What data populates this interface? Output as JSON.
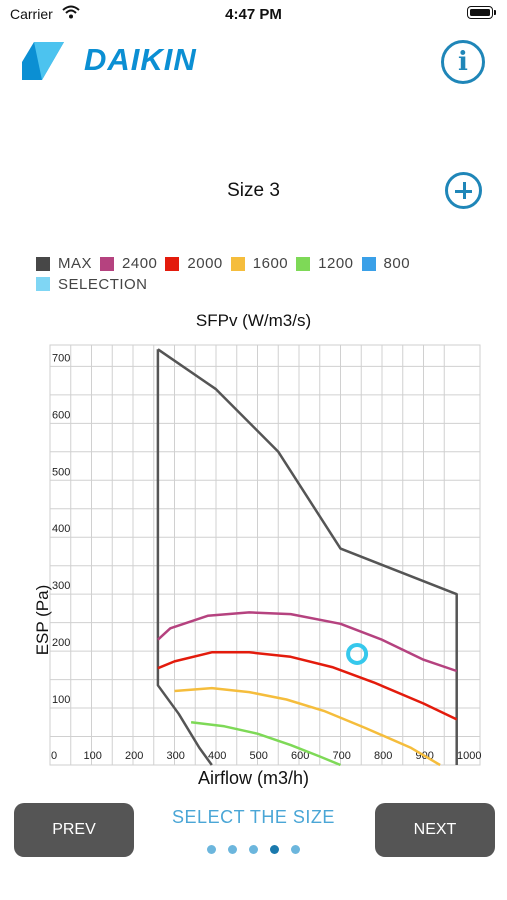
{
  "status": {
    "carrier": "Carrier",
    "time": "4:47 PM"
  },
  "header": {
    "brand": "DAIKIN",
    "info_symbol": "i"
  },
  "size": {
    "title": "Size 3"
  },
  "legend": [
    {
      "label": "MAX",
      "color": "#474747"
    },
    {
      "label": "2400",
      "color": "#b5427f"
    },
    {
      "label": "2000",
      "color": "#e31b0c"
    },
    {
      "label": "1600",
      "color": "#f5bd3c"
    },
    {
      "label": "1200",
      "color": "#7ed957"
    },
    {
      "label": "800",
      "color": "#3aa0e8"
    },
    {
      "label": "SELECTION",
      "color": "#7fd6f4"
    }
  ],
  "chart_data": {
    "type": "line",
    "title": "SFPv (W/m3/s)",
    "xlabel": "Airflow (m3/h)",
    "ylabel": "ESP (Pa)",
    "xlim": [
      0,
      1000
    ],
    "ylim": [
      0,
      720
    ],
    "x_ticks": [
      0,
      100,
      200,
      300,
      400,
      500,
      600,
      700,
      800,
      900,
      1000
    ],
    "y_ticks": [
      100,
      200,
      300,
      400,
      500,
      600,
      700
    ],
    "grid": true,
    "series": [
      {
        "name": "MAX",
        "color": "#555555",
        "points": [
          [
            260,
            730
          ],
          [
            260,
            140
          ],
          [
            310,
            90
          ],
          [
            360,
            30
          ],
          [
            390,
            0
          ]
        ]
      },
      {
        "name": "MAX",
        "color": "#555555",
        "points": [
          [
            260,
            730
          ],
          [
            400,
            660
          ],
          [
            550,
            550
          ],
          [
            700,
            380
          ],
          [
            980,
            300
          ],
          [
            980,
            0
          ]
        ]
      },
      {
        "name": "2400",
        "color": "#b5427f",
        "points": [
          [
            260,
            220
          ],
          [
            290,
            240
          ],
          [
            380,
            262
          ],
          [
            480,
            268
          ],
          [
            580,
            265
          ],
          [
            700,
            248
          ],
          [
            800,
            220
          ],
          [
            900,
            185
          ],
          [
            980,
            165
          ]
        ]
      },
      {
        "name": "2000",
        "color": "#e31b0c",
        "points": [
          [
            260,
            170
          ],
          [
            300,
            182
          ],
          [
            390,
            198
          ],
          [
            480,
            198
          ],
          [
            580,
            190
          ],
          [
            680,
            172
          ],
          [
            780,
            145
          ],
          [
            900,
            108
          ],
          [
            980,
            80
          ]
        ]
      },
      {
        "name": "1600",
        "color": "#f5bd3c",
        "points": [
          [
            300,
            130
          ],
          [
            390,
            135
          ],
          [
            480,
            128
          ],
          [
            570,
            115
          ],
          [
            660,
            95
          ],
          [
            760,
            65
          ],
          [
            870,
            30
          ],
          [
            940,
            0
          ]
        ]
      },
      {
        "name": "1200",
        "color": "#7ed957",
        "points": [
          [
            340,
            75
          ],
          [
            420,
            68
          ],
          [
            500,
            55
          ],
          [
            580,
            35
          ],
          [
            650,
            15
          ],
          [
            700,
            0
          ]
        ]
      }
    ],
    "selection": {
      "x": 740,
      "y": 195,
      "color": "#36c8ec"
    }
  },
  "footer": {
    "prev_label": "PREV",
    "next_label": "NEXT",
    "select_label": "SELECT THE SIZE",
    "page_count": 5,
    "active_page": 4
  }
}
